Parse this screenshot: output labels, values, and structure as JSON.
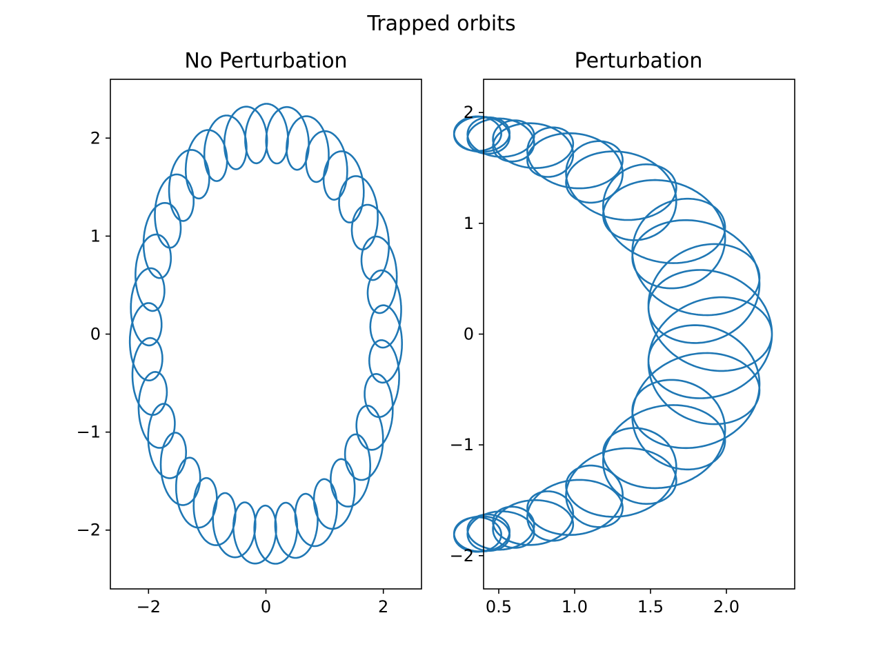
{
  "figure": {
    "title": "Trapped orbits"
  },
  "chart_data": [
    {
      "type": "line",
      "title": "No Perturbation",
      "xlabel": "",
      "ylabel": "",
      "xlim": [
        -2.65,
        2.65
      ],
      "ylim": [
        -2.6,
        2.6
      ],
      "xticks": [
        -2,
        0,
        2
      ],
      "yticks": [
        -2,
        -1,
        0,
        1,
        2
      ],
      "grid": false,
      "legend": "none",
      "series": [
        {
          "color": "#1f77b4",
          "description": "epicyclic orbit traced as overlapping loops around an elliptical guiding path",
          "guiding_ellipse": {
            "center": [
              0,
              0
            ],
            "semi_x": 2.05,
            "semi_y": 2.05
          },
          "loop_radius": {
            "x": 0.27,
            "y": 0.3
          },
          "loop_count": 36,
          "start": [
            1.8,
            0.6
          ]
        }
      ]
    },
    {
      "type": "line",
      "title": "Perturbation",
      "xlabel": "",
      "ylabel": "",
      "xlim": [
        0.4,
        2.45
      ],
      "ylim": [
        -2.3,
        2.3
      ],
      "xticks": [
        0.5,
        1.0,
        1.5,
        2.0
      ],
      "yticks": [
        -2,
        -1,
        0,
        1,
        2
      ],
      "grid": false,
      "legend": "none",
      "series": [
        {
          "color": "#1f77b4",
          "description": "trapped (banana-shaped) orbit: loops whose size grows toward the right side, forming a crescent",
          "guiding_arc": {
            "center": [
              0.0,
              0.0
            ],
            "radius_x": 1.9,
            "radius_y": 1.85,
            "angle_range_deg": [
              -78,
              78
            ]
          },
          "loop_radius_range": {
            "x": [
              0.14,
              0.4
            ],
            "y": [
              0.13,
              0.45
            ]
          },
          "loop_count": 48,
          "start": [
            2.1,
            0.0
          ]
        }
      ]
    }
  ],
  "tick_labels": {
    "panel1_x": [
      "−2",
      "0",
      "2"
    ],
    "panel1_y": [
      "−2",
      "−1",
      "0",
      "1",
      "2"
    ],
    "panel2_x": [
      "0.5",
      "1.0",
      "1.5",
      "2.0"
    ],
    "panel2_y": [
      "−2",
      "−1",
      "0",
      "1",
      "2"
    ]
  }
}
